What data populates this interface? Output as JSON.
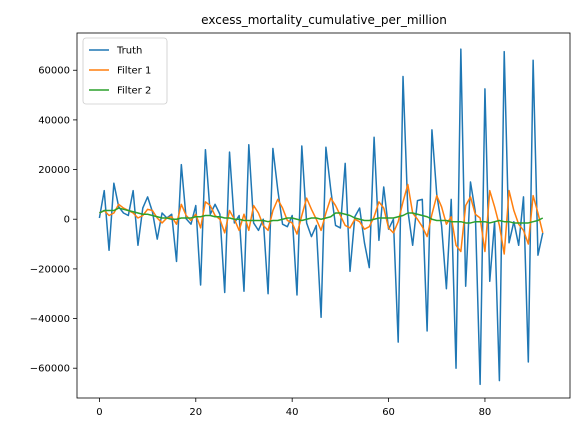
{
  "chart_data": {
    "type": "line",
    "title": "excess_mortality_cumulative_per_million",
    "xlabel": "",
    "ylabel": "",
    "xlim": [
      -4.65,
      97.65
    ],
    "ylim": [
      -72000,
      75000
    ],
    "xticks": [
      0,
      20,
      40,
      60,
      80
    ],
    "yticks": [
      -60000,
      -40000,
      -20000,
      0,
      20000,
      40000,
      60000
    ],
    "grid": false,
    "legend_position": "top-left",
    "series": [
      {
        "name": "Truth",
        "color": "#1f77b4",
        "values": [
          500,
          11500,
          -12500,
          14500,
          5000,
          2500,
          1500,
          11500,
          -10500,
          4500,
          9000,
          3000,
          -8000,
          2500,
          500,
          2000,
          -17000,
          22000,
          200,
          -2000,
          5500,
          -26500,
          28000,
          2000,
          6000,
          2000,
          -29500,
          27000,
          -1500,
          1500,
          -29000,
          30000,
          -1500,
          -4500,
          0,
          -30000,
          28500,
          12000,
          -2000,
          -3000,
          1500,
          -30500,
          29500,
          -1500,
          -7000,
          -2500,
          -39500,
          29000,
          12000,
          -2500,
          -3500,
          22500,
          -21000,
          1000,
          4500,
          -9500,
          -19500,
          33000,
          -8500,
          13000,
          -4000,
          0,
          -49500,
          57500,
          3500,
          -10500,
          7500,
          8000,
          -45000,
          36000,
          10000,
          -2500,
          -28000,
          8000,
          -60000,
          68500,
          -27000,
          15000,
          3000,
          -66500,
          52500,
          -25000,
          -1000,
          -65000,
          67500,
          -9500,
          -1000,
          -10500,
          9000,
          -57500,
          64000,
          -14500,
          -5500
        ]
      },
      {
        "name": "Filter 1",
        "color": "#ff7f0e",
        "values": [
          2500,
          3500,
          1500,
          2500,
          6000,
          4500,
          3500,
          2500,
          500,
          1500,
          4000,
          3500,
          500,
          -1500,
          500,
          1000,
          -2000,
          6000,
          1500,
          -500,
          2000,
          -3500,
          7000,
          5500,
          1500,
          0,
          -5500,
          3500,
          0,
          -4500,
          2000,
          -4500,
          5500,
          2500,
          -2500,
          -4500,
          3500,
          8000,
          4500,
          -500,
          -1500,
          -6000,
          1500,
          8500,
          4000,
          0,
          -4500,
          2500,
          8500,
          5500,
          1500,
          -2500,
          -3500,
          0,
          -1000,
          -4000,
          -3000,
          1000,
          7000,
          4500,
          -3500,
          -5500,
          -1000,
          7000,
          14000,
          2500,
          0,
          -3000,
          -7000,
          2000,
          9500,
          5000,
          -2000,
          1000,
          -10500,
          -13000,
          5500,
          9000,
          2000,
          500,
          -13000,
          11500,
          5000,
          -2500,
          -14000,
          11500,
          3500,
          -2000,
          -4500,
          -10000,
          9500,
          2500,
          -5500
        ]
      },
      {
        "name": "Filter 2",
        "color": "#2ca02c",
        "values": [
          2500,
          3500,
          3500,
          3500,
          4500,
          4000,
          3500,
          3000,
          2500,
          2000,
          2000,
          1500,
          1000,
          500,
          500,
          0,
          0,
          500,
          500,
          500,
          1000,
          1000,
          1500,
          1500,
          1000,
          1000,
          500,
          500,
          0,
          0,
          -500,
          -500,
          -500,
          -500,
          -500,
          -1000,
          -500,
          -500,
          0,
          500,
          500,
          0,
          -500,
          0,
          500,
          500,
          0,
          500,
          1000,
          2500,
          2500,
          2000,
          1500,
          500,
          0,
          -500,
          -500,
          0,
          500,
          500,
          500,
          500,
          1000,
          1500,
          2500,
          2500,
          2000,
          1500,
          1000,
          0,
          -500,
          -500,
          -500,
          -1000,
          -1000,
          -1000,
          -1500,
          -1500,
          -1000,
          -1000,
          -1000,
          -1500,
          -1000,
          -500,
          -1000,
          -1000,
          -1500,
          -1500,
          -1500,
          -1500,
          -1000,
          -500,
          500
        ]
      }
    ]
  }
}
